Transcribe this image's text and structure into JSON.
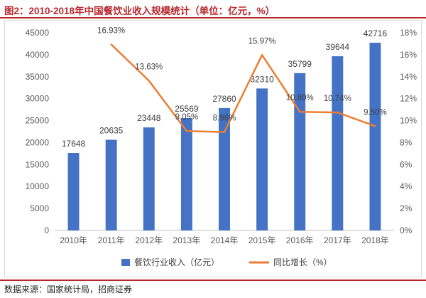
{
  "figure": {
    "title": "图2：2010-2018年中国餐饮业收入规模统计（单位：亿元，%）",
    "source": "数据来源：国家统计局，招商证券"
  },
  "colors": {
    "bar": "#4472c4",
    "line": "#ed7d31",
    "title": "#b8272d"
  },
  "chart_data": {
    "type": "bar",
    "categories": [
      "2010年",
      "2011年",
      "2012年",
      "2013年",
      "2014年",
      "2015年",
      "2016年",
      "2017年",
      "2018年"
    ],
    "series": [
      {
        "name": "餐饮行业收入（亿元）",
        "type": "bar",
        "axis": "left",
        "values": [
          17648,
          20635,
          23448,
          25569,
          27860,
          32310,
          35799,
          39644,
          42716
        ],
        "labels": [
          "17648",
          "20635",
          "23448",
          "25569",
          "27860",
          "32310",
          "35799",
          "39644",
          "42716"
        ]
      },
      {
        "name": "同比增长（%）",
        "type": "line",
        "axis": "right",
        "values": [
          null,
          16.93,
          13.63,
          9.05,
          8.96,
          15.97,
          10.8,
          10.74,
          9.5
        ],
        "labels": [
          "",
          "16.93%",
          "13.63%",
          "9.05%",
          "8.96%",
          "15.97%",
          "10.80%",
          "10.74%",
          "9.50%"
        ]
      }
    ],
    "y_left": {
      "range": [
        0,
        45000
      ],
      "ticks": [
        "0",
        "5000",
        "10000",
        "15000",
        "20000",
        "25000",
        "30000",
        "35000",
        "40000",
        "45000"
      ]
    },
    "y_right": {
      "range": [
        0,
        18
      ],
      "ticks": [
        "0%",
        "2%",
        "4%",
        "6%",
        "8%",
        "10%",
        "12%",
        "14%",
        "16%",
        "18%"
      ]
    },
    "grid": false,
    "legend_position": "bottom"
  }
}
